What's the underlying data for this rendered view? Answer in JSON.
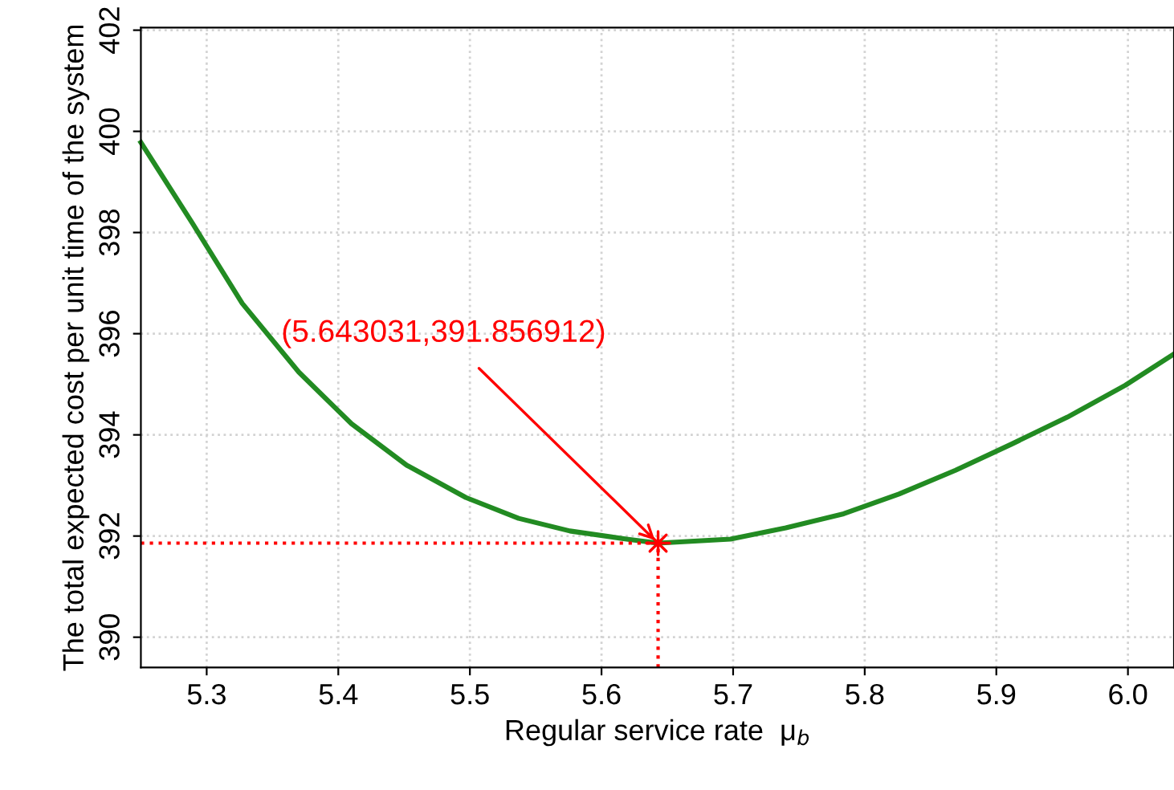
{
  "chart_data": {
    "type": "line",
    "xlabel": "Regular service rate  μ$_{b}$",
    "ylabel": "The total expected cost per unit time of the system",
    "xlim": [
      5.25,
      6.035
    ],
    "ylim": [
      389.4,
      402.05
    ],
    "xticks": [
      5.3,
      5.4,
      5.5,
      5.6,
      5.7,
      5.8,
      5.9,
      {
        "value": 6.0,
        "label": "6.0"
      }
    ],
    "yticks": [
      390,
      392,
      394,
      396,
      398,
      400,
      402
    ],
    "grid": true,
    "series": [
      {
        "color": "#228b22",
        "x": [
          5.25,
          5.289,
          5.327,
          5.37,
          5.41,
          5.452,
          5.497,
          5.537,
          5.576,
          5.619,
          5.643,
          5.698,
          5.74,
          5.784,
          5.826,
          5.869,
          5.911,
          5.954,
          5.998,
          6.035
        ],
        "values": [
          399.78,
          398.19,
          396.6,
          395.24,
          394.22,
          393.4,
          392.76,
          392.35,
          392.1,
          391.94,
          391.86,
          391.94,
          392.16,
          392.44,
          392.83,
          393.3,
          393.81,
          394.35,
          394.98,
          395.6
        ]
      },
      {
        "color": "#ff0000",
        "line_style": "dotted",
        "x": [
          5.25,
          5.643
        ],
        "values": [
          391.86,
          391.86
        ]
      },
      {
        "color": "#ff0000",
        "line_style": "dotted",
        "x": [
          5.643,
          5.643
        ],
        "values": [
          389.4,
          391.86
        ]
      },
      {
        "type": "scatter",
        "color": "#ff0000",
        "marker": "cross",
        "x": [
          5.643
        ],
        "values": [
          391.86
        ]
      }
    ],
    "annotations": [
      {
        "text": "(5.643031,391.856912)",
        "x": 5.643031,
        "y": 391.856912
      }
    ]
  }
}
